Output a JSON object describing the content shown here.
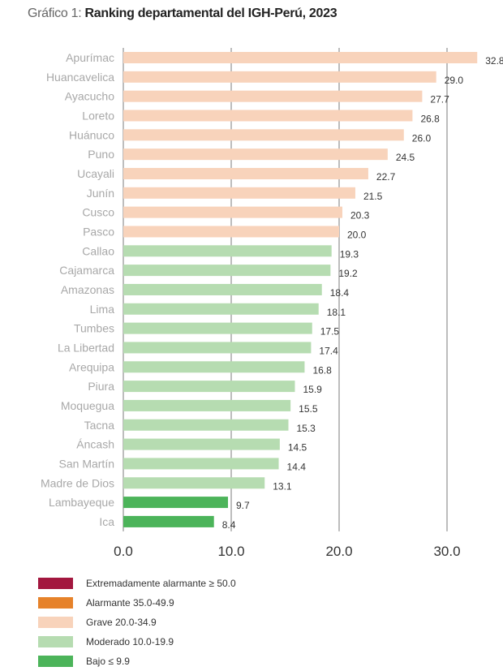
{
  "chart_data": {
    "type": "bar",
    "orientation": "horizontal",
    "title_prefix": "Gráfico 1:",
    "title": "Ranking departamental del IGH-Perú, 2023",
    "categories": [
      "Apurímac",
      "Huancavelica",
      "Ayacucho",
      "Loreto",
      "Huánuco",
      "Puno",
      "Ucayali",
      "Junín",
      "Cusco",
      "Pasco",
      "Callao",
      "Cajamarca",
      "Amazonas",
      "Lima",
      "Tumbes",
      "La Libertad",
      "Arequipa",
      "Piura",
      "Moquegua",
      "Tacna",
      "Áncash",
      "San Martín",
      "Madre de Dios",
      "Lambayeque",
      "Ica"
    ],
    "values": [
      32.8,
      29.0,
      27.7,
      26.8,
      26.0,
      24.5,
      22.7,
      21.5,
      20.3,
      20.0,
      19.3,
      19.2,
      18.4,
      18.1,
      17.5,
      17.4,
      16.8,
      15.9,
      15.5,
      15.3,
      14.5,
      14.4,
      13.1,
      9.7,
      8.4
    ],
    "xlim": [
      0,
      33
    ],
    "xticks": [
      "0.0",
      "10.0",
      "20.0",
      "30.0"
    ],
    "xtick_values": [
      0,
      10,
      20,
      30
    ],
    "grid": "vertical",
    "legend_position": "bottom-left",
    "legend": [
      {
        "label": "Extremadamente alarmante ≥ 50.0",
        "color": "#a3173f",
        "min": 50
      },
      {
        "label": "Alarmante 35.0-49.9",
        "color": "#e6822a",
        "min": 35
      },
      {
        "label": "Grave 20.0-34.9",
        "color": "#f8d3bb",
        "min": 20
      },
      {
        "label": "Moderado 10.0-19.9",
        "color": "#b6dcb1",
        "min": 10
      },
      {
        "label": "Bajo ≤ 9.9",
        "color": "#4cb45a",
        "min": 0
      }
    ]
  }
}
